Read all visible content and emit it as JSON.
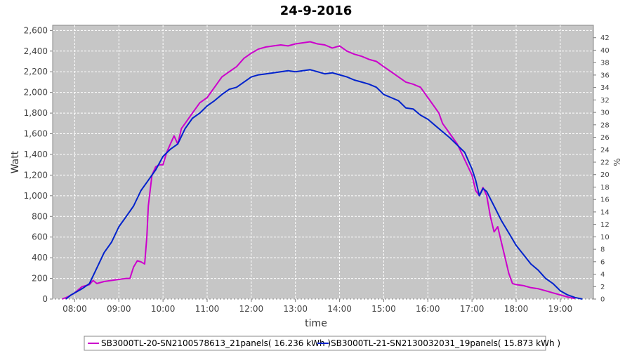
{
  "chart_data": {
    "type": "line",
    "title": "24-9-2016",
    "xlabel": "time",
    "ylabel": "Watt",
    "y2label": "%",
    "xlim": [
      "07:30",
      "19:45"
    ],
    "ylim": [
      0,
      2650
    ],
    "y2lim": [
      0,
      44
    ],
    "x_ticks": [
      "08:00",
      "09:00",
      "10:00",
      "11:00",
      "12:00",
      "13:00",
      "14:00",
      "15:00",
      "16:00",
      "17:00",
      "18:00",
      "19:00"
    ],
    "y_ticks": [
      "0",
      "200",
      "400",
      "600",
      "800",
      "1,000",
      "1,200",
      "1,400",
      "1,600",
      "1,800",
      "2,000",
      "2,200",
      "2,400",
      "2,600"
    ],
    "y2_ticks": [
      "0",
      "2",
      "4",
      "6",
      "8",
      "10",
      "12",
      "14",
      "16",
      "18",
      "20",
      "22",
      "24",
      "26",
      "28",
      "30",
      "32",
      "34",
      "36",
      "38",
      "40",
      "42"
    ],
    "grid": true,
    "legend_position": "bottom",
    "series": [
      {
        "name": "SB3000TL-20-SN2100578613_21panels( 16.236 kWh )",
        "color": "#cc00cc",
        "points": [
          [
            "07:43",
            0
          ],
          [
            "07:50",
            20
          ],
          [
            "08:00",
            60
          ],
          [
            "08:10",
            120
          ],
          [
            "08:20",
            140
          ],
          [
            "08:25",
            180
          ],
          [
            "08:30",
            150
          ],
          [
            "08:40",
            170
          ],
          [
            "08:50",
            180
          ],
          [
            "09:00",
            190
          ],
          [
            "09:10",
            200
          ],
          [
            "09:15",
            200
          ],
          [
            "09:20",
            310
          ],
          [
            "09:25",
            370
          ],
          [
            "09:30",
            360
          ],
          [
            "09:35",
            340
          ],
          [
            "09:38",
            600
          ],
          [
            "09:40",
            900
          ],
          [
            "09:45",
            1200
          ],
          [
            "09:50",
            1280
          ],
          [
            "09:55",
            1300
          ],
          [
            "10:00",
            1300
          ],
          [
            "10:05",
            1420
          ],
          [
            "10:10",
            1500
          ],
          [
            "10:15",
            1580
          ],
          [
            "10:20",
            1500
          ],
          [
            "10:25",
            1650
          ],
          [
            "10:30",
            1700
          ],
          [
            "10:40",
            1800
          ],
          [
            "10:50",
            1900
          ],
          [
            "11:00",
            1950
          ],
          [
            "11:10",
            2050
          ],
          [
            "11:20",
            2150
          ],
          [
            "11:30",
            2200
          ],
          [
            "11:40",
            2250
          ],
          [
            "11:50",
            2330
          ],
          [
            "12:00",
            2380
          ],
          [
            "12:10",
            2420
          ],
          [
            "12:20",
            2440
          ],
          [
            "12:30",
            2450
          ],
          [
            "12:40",
            2460
          ],
          [
            "12:50",
            2450
          ],
          [
            "13:00",
            2470
          ],
          [
            "13:10",
            2480
          ],
          [
            "13:20",
            2490
          ],
          [
            "13:30",
            2470
          ],
          [
            "13:40",
            2460
          ],
          [
            "13:50",
            2430
          ],
          [
            "14:00",
            2450
          ],
          [
            "14:10",
            2400
          ],
          [
            "14:20",
            2370
          ],
          [
            "14:30",
            2350
          ],
          [
            "14:40",
            2320
          ],
          [
            "14:50",
            2300
          ],
          [
            "15:00",
            2250
          ],
          [
            "15:10",
            2200
          ],
          [
            "15:20",
            2150
          ],
          [
            "15:30",
            2100
          ],
          [
            "15:40",
            2080
          ],
          [
            "15:50",
            2050
          ],
          [
            "16:00",
            1950
          ],
          [
            "16:10",
            1850
          ],
          [
            "16:15",
            1800
          ],
          [
            "16:20",
            1700
          ],
          [
            "16:30",
            1600
          ],
          [
            "16:40",
            1500
          ],
          [
            "16:50",
            1350
          ],
          [
            "17:00",
            1200
          ],
          [
            "17:05",
            1050
          ],
          [
            "17:10",
            1000
          ],
          [
            "17:15",
            1080
          ],
          [
            "17:20",
            1000
          ],
          [
            "17:25",
            800
          ],
          [
            "17:30",
            650
          ],
          [
            "17:35",
            700
          ],
          [
            "17:40",
            550
          ],
          [
            "17:45",
            400
          ],
          [
            "17:50",
            250
          ],
          [
            "17:55",
            150
          ],
          [
            "18:00",
            140
          ],
          [
            "18:10",
            130
          ],
          [
            "18:20",
            110
          ],
          [
            "18:30",
            100
          ],
          [
            "18:40",
            80
          ],
          [
            "18:50",
            60
          ],
          [
            "19:00",
            40
          ],
          [
            "19:10",
            20
          ],
          [
            "19:20",
            5
          ]
        ]
      },
      {
        "name": "SB3000TL-21-SN2130032031_19panels( 15.873 kWh )",
        "color": "#0022cc",
        "points": [
          [
            "07:48",
            0
          ],
          [
            "07:55",
            40
          ],
          [
            "08:00",
            60
          ],
          [
            "08:10",
            100
          ],
          [
            "08:20",
            150
          ],
          [
            "08:30",
            300
          ],
          [
            "08:40",
            450
          ],
          [
            "08:50",
            550
          ],
          [
            "09:00",
            700
          ],
          [
            "09:10",
            800
          ],
          [
            "09:20",
            900
          ],
          [
            "09:30",
            1050
          ],
          [
            "09:40",
            1150
          ],
          [
            "09:50",
            1250
          ],
          [
            "10:00",
            1380
          ],
          [
            "10:10",
            1450
          ],
          [
            "10:20",
            1500
          ],
          [
            "10:30",
            1650
          ],
          [
            "10:40",
            1750
          ],
          [
            "10:50",
            1800
          ],
          [
            "11:00",
            1870
          ],
          [
            "11:10",
            1920
          ],
          [
            "11:20",
            1980
          ],
          [
            "11:30",
            2030
          ],
          [
            "11:40",
            2050
          ],
          [
            "11:50",
            2100
          ],
          [
            "12:00",
            2150
          ],
          [
            "12:10",
            2170
          ],
          [
            "12:20",
            2180
          ],
          [
            "12:30",
            2190
          ],
          [
            "12:40",
            2200
          ],
          [
            "12:50",
            2210
          ],
          [
            "13:00",
            2200
          ],
          [
            "13:10",
            2210
          ],
          [
            "13:20",
            2220
          ],
          [
            "13:30",
            2200
          ],
          [
            "13:40",
            2180
          ],
          [
            "13:50",
            2190
          ],
          [
            "14:00",
            2170
          ],
          [
            "14:10",
            2150
          ],
          [
            "14:20",
            2120
          ],
          [
            "14:30",
            2100
          ],
          [
            "14:40",
            2080
          ],
          [
            "14:50",
            2050
          ],
          [
            "15:00",
            1980
          ],
          [
            "15:10",
            1950
          ],
          [
            "15:20",
            1920
          ],
          [
            "15:30",
            1850
          ],
          [
            "15:40",
            1840
          ],
          [
            "15:50",
            1780
          ],
          [
            "16:00",
            1740
          ],
          [
            "16:10",
            1680
          ],
          [
            "16:20",
            1620
          ],
          [
            "16:30",
            1560
          ],
          [
            "16:40",
            1490
          ],
          [
            "16:50",
            1420
          ],
          [
            "17:00",
            1260
          ],
          [
            "17:05",
            1150
          ],
          [
            "17:10",
            1000
          ],
          [
            "17:15",
            1070
          ],
          [
            "17:20",
            1040
          ],
          [
            "17:30",
            900
          ],
          [
            "17:40",
            760
          ],
          [
            "17:50",
            640
          ],
          [
            "18:00",
            520
          ],
          [
            "18:10",
            430
          ],
          [
            "18:20",
            340
          ],
          [
            "18:30",
            280
          ],
          [
            "18:40",
            200
          ],
          [
            "18:50",
            150
          ],
          [
            "19:00",
            80
          ],
          [
            "19:10",
            40
          ],
          [
            "19:20",
            15
          ],
          [
            "19:30",
            0
          ]
        ]
      }
    ]
  }
}
